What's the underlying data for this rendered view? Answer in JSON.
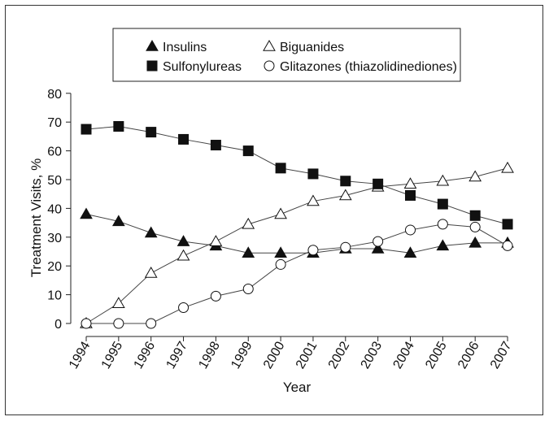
{
  "chart_data": {
    "type": "line",
    "xlabel": "Year",
    "ylabel": "Treatment Visits, %",
    "ylim": [
      0,
      80
    ],
    "yticks": [
      0,
      10,
      20,
      30,
      40,
      50,
      60,
      70,
      80
    ],
    "categories": [
      "1994",
      "1995",
      "1996",
      "1997",
      "1998",
      "1999",
      "2000",
      "2001",
      "2002",
      "2003",
      "2004",
      "2005",
      "2006",
      "2007"
    ],
    "legend_position": "top-center",
    "series": [
      {
        "name": "Insulins",
        "marker": "triangle-filled",
        "values": [
          38,
          35.5,
          31.5,
          28.5,
          27,
          24.5,
          24.5,
          24.5,
          26,
          26,
          24.5,
          27,
          28,
          28
        ]
      },
      {
        "name": "Biguanides",
        "marker": "triangle-open",
        "values": [
          0,
          7,
          17.5,
          23.5,
          28.5,
          34.5,
          38,
          42.5,
          44.5,
          47.5,
          48.5,
          49.5,
          51,
          54
        ]
      },
      {
        "name": "Sulfonylureas",
        "marker": "square-filled",
        "values": [
          67.5,
          68.5,
          66.5,
          64,
          62,
          60,
          54,
          52,
          49.5,
          48.5,
          44.5,
          41.5,
          37.5,
          34.5
        ]
      },
      {
        "name": "Glitazones (thiazolidinediones)",
        "marker": "circle-open",
        "values": [
          0,
          0,
          0,
          5.5,
          9.5,
          12,
          20.5,
          25.5,
          26.5,
          28.5,
          32.5,
          34.5,
          33.5,
          27
        ]
      }
    ]
  }
}
